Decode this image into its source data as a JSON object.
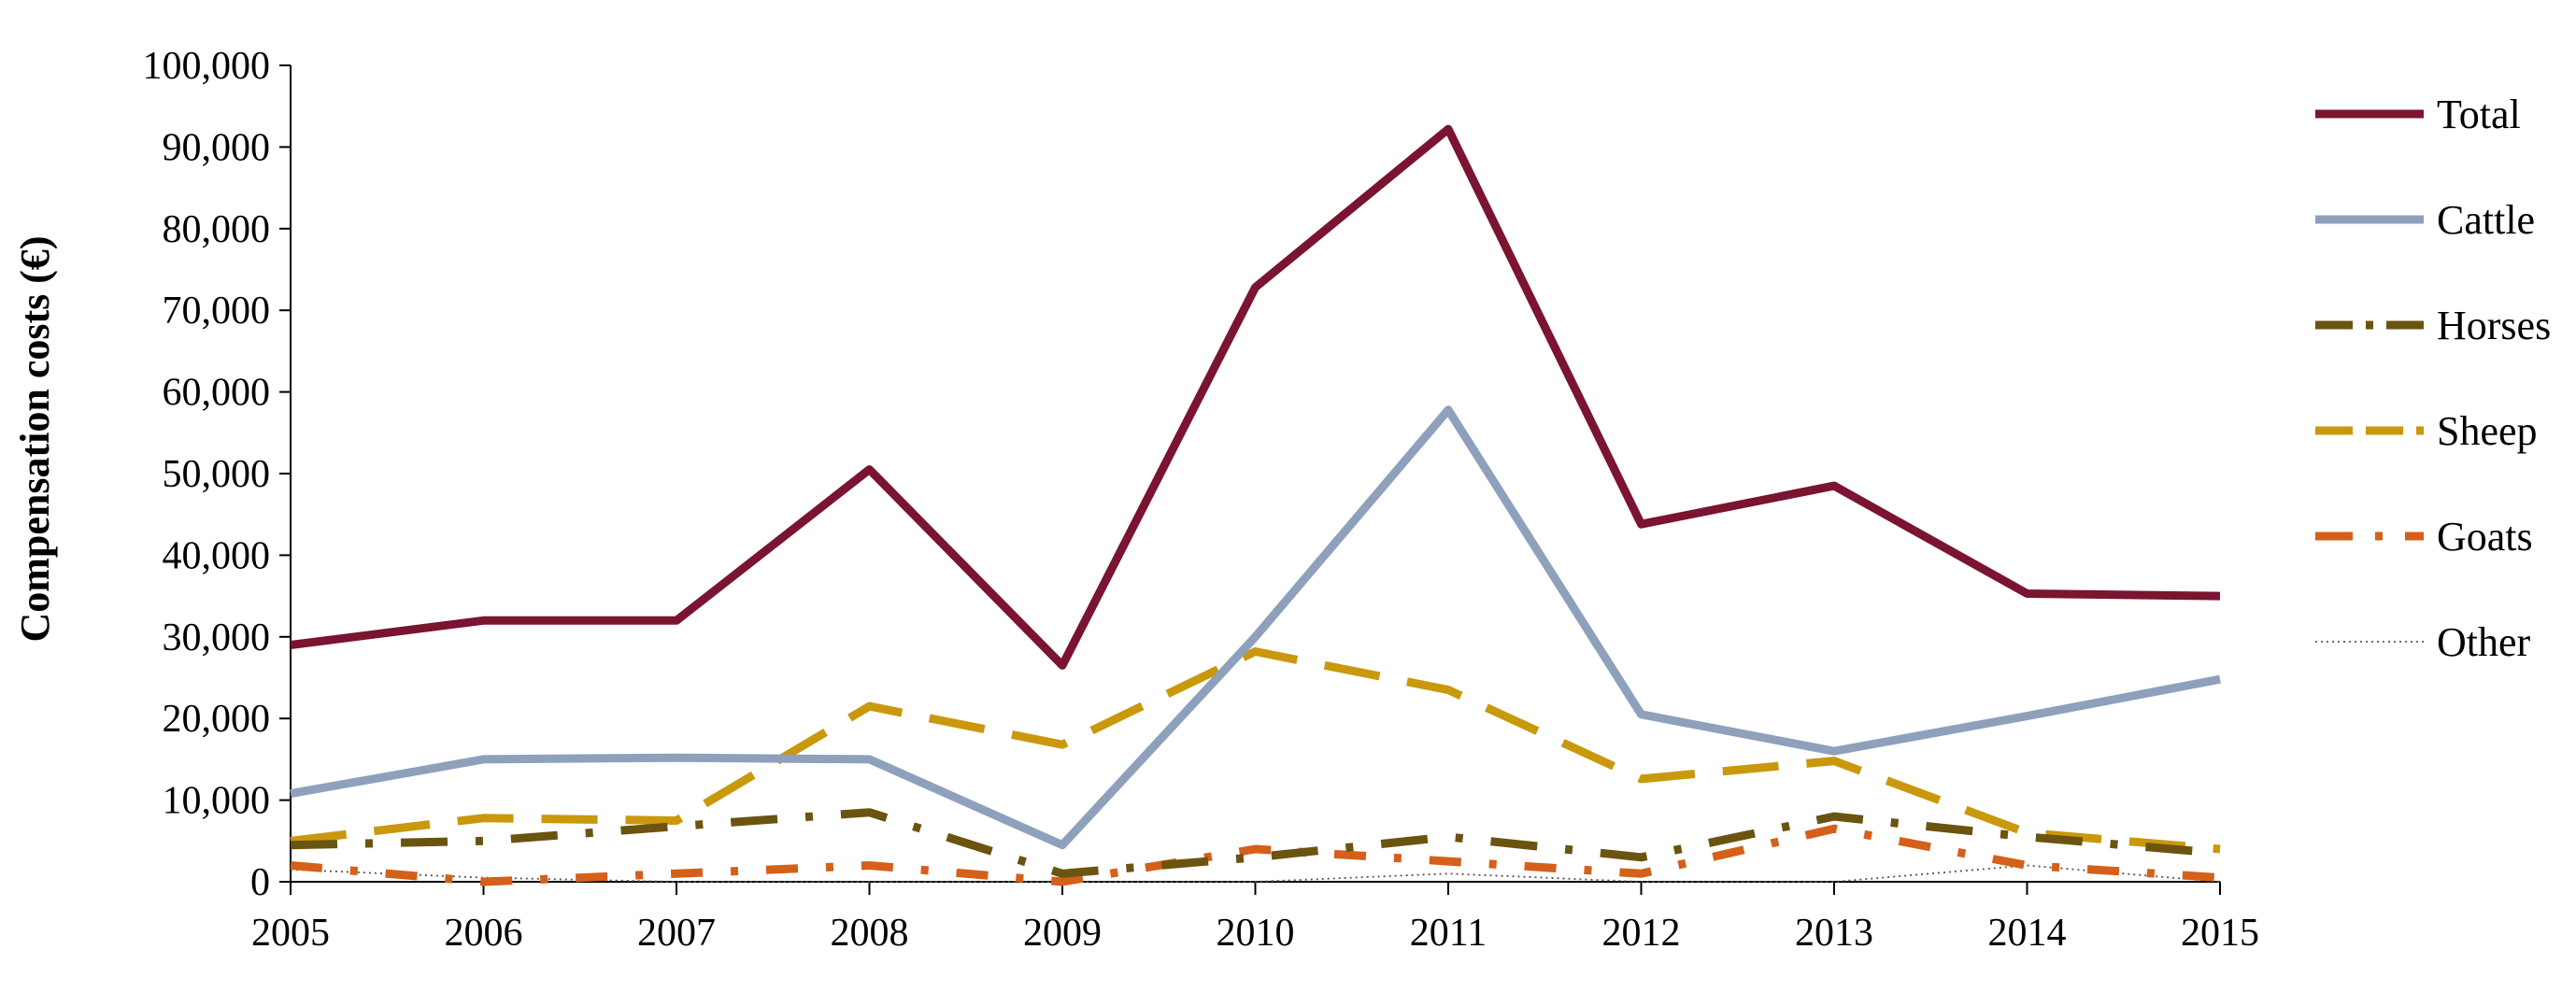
{
  "chart_data": {
    "type": "line",
    "ylabel": "Compensation  costs (€)",
    "xlabel": "",
    "x": [
      "2005",
      "2006",
      "2007",
      "2008",
      "2009",
      "2010",
      "2011",
      "2012",
      "2013",
      "2014",
      "2015"
    ],
    "ylim": [
      0,
      100000
    ],
    "yticks": [
      0,
      10000,
      20000,
      30000,
      40000,
      50000,
      60000,
      70000,
      80000,
      90000,
      100000
    ],
    "ytick_labels": [
      "0",
      "10,000",
      "20,000",
      "30,000",
      "40,000",
      "50,000",
      "60,000",
      "70,000",
      "80,000",
      "90,000",
      "100,000"
    ],
    "grid": false,
    "legend_position": "right",
    "series": [
      {
        "name": "Total",
        "color": "#7a1430",
        "style": "solid",
        "values": [
          29000,
          32000,
          32000,
          50500,
          26500,
          72800,
          92200,
          43800,
          48500,
          35300,
          35000
        ]
      },
      {
        "name": "Cattle",
        "color": "#8ea0bc",
        "style": "solid",
        "values": [
          10800,
          15000,
          15200,
          15000,
          4500,
          30000,
          57800,
          20500,
          16000,
          20300,
          24800
        ]
      },
      {
        "name": "Horses",
        "color": "#6b5410",
        "style": "longdashdot",
        "values": [
          4500,
          5000,
          6800,
          8500,
          1000,
          3000,
          5500,
          3000,
          8000,
          5500,
          3500
        ]
      },
      {
        "name": "Sheep",
        "color": "#c9980c",
        "style": "longdash",
        "values": [
          5000,
          7800,
          7500,
          21500,
          16800,
          28200,
          23500,
          12600,
          14800,
          6000,
          4000
        ]
      },
      {
        "name": "Goats",
        "color": "#d4601a",
        "style": "dashdot",
        "values": [
          2000,
          0,
          1000,
          2000,
          0,
          4000,
          2500,
          1000,
          6500,
          2000,
          500
        ]
      },
      {
        "name": "Other",
        "color": "#555555",
        "style": "dotted",
        "values": [
          1500,
          500,
          0,
          0,
          0,
          0,
          1000,
          0,
          0,
          2000,
          0
        ]
      }
    ]
  }
}
